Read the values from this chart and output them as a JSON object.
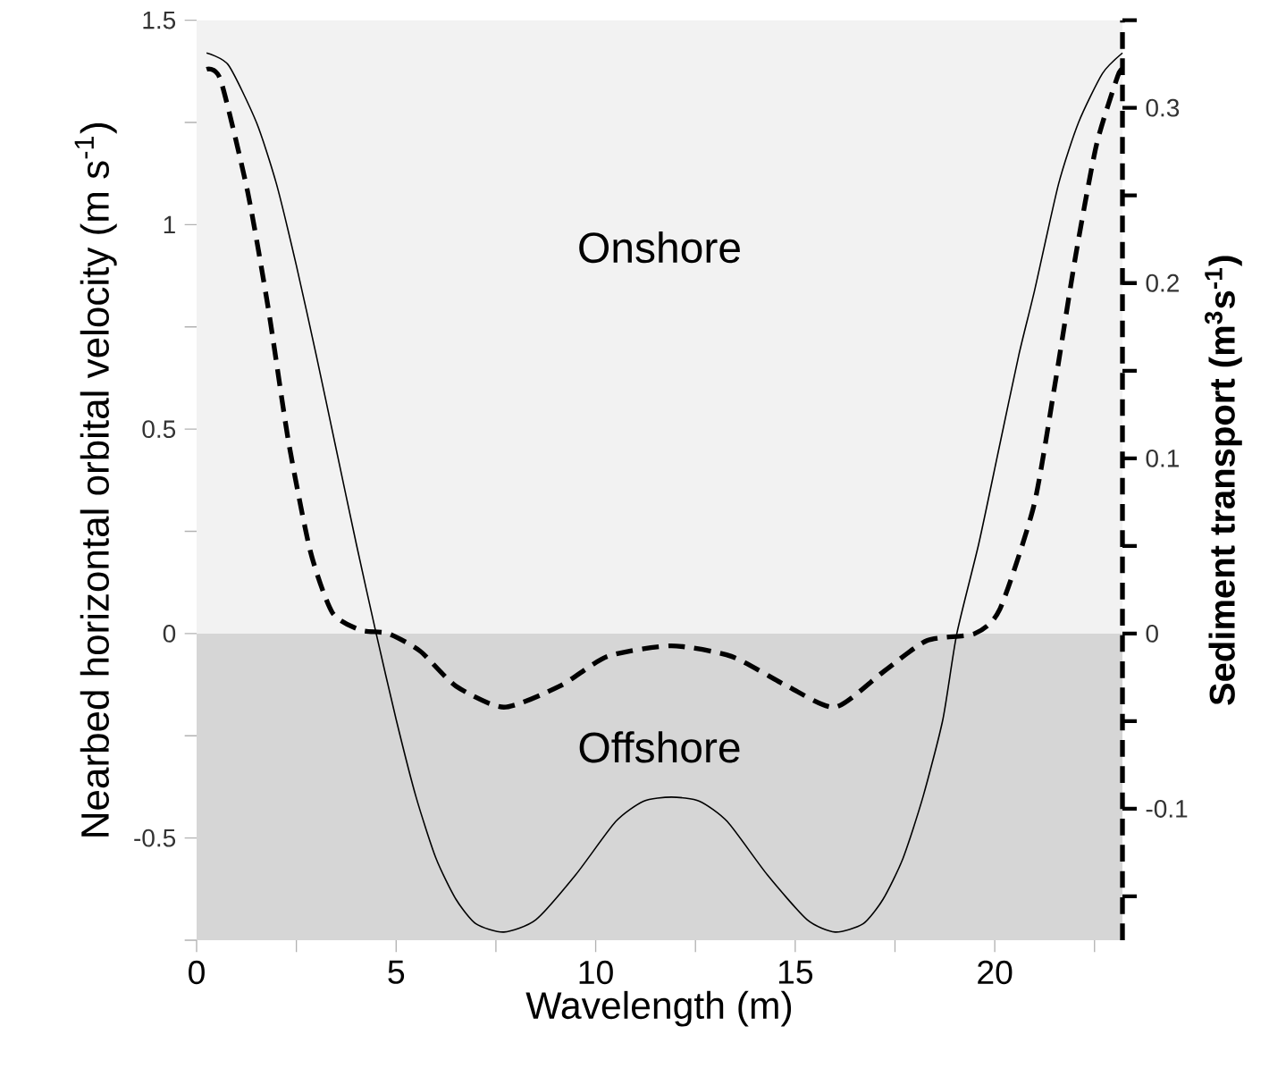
{
  "chart_data": {
    "type": "line",
    "xlabel": "Wavelength (m)",
    "ylabel": "Nearbed horizontal orbital velocity (m s$^{-1}$)",
    "y2label": "Sediment transport (m$^{3}$s$^{-1}$)",
    "xlim": [
      0,
      23.2
    ],
    "xticks": [
      0,
      {
        "value": 2.5,
        "label": null
      },
      5,
      {
        "value": 7.5,
        "label": null
      },
      10,
      {
        "value": 12.5,
        "label": null
      },
      15,
      {
        "value": 17.5,
        "label": null
      },
      20,
      {
        "value": 22.5,
        "label": null
      }
    ],
    "ylim": [
      -0.75,
      1.5
    ],
    "yticks": [
      {
        "value": -0.75,
        "label": null
      },
      -0.5,
      {
        "value": -0.25,
        "label": null
      },
      0,
      {
        "value": 0.25,
        "label": null
      },
      0.5,
      {
        "value": 0.75,
        "label": null
      },
      1,
      {
        "value": 1.25,
        "label": null
      },
      1.5
    ],
    "y2lim": [
      -0.175,
      0.35
    ],
    "y2ticks": [
      {
        "value": -0.15,
        "label": null
      },
      -0.1,
      {
        "value": -0.05,
        "label": null
      },
      0,
      {
        "value": 0.05,
        "label": null
      },
      0.1,
      {
        "value": 0.15,
        "label": null
      },
      0.2,
      {
        "value": 0.25,
        "label": null
      },
      0.3,
      {
        "value": 0.35,
        "label": null
      }
    ],
    "bands": [
      {
        "axis": "y",
        "from": 0,
        "to": 1.5,
        "label": "Onshore",
        "color": "#f2f2f2"
      },
      {
        "axis": "y",
        "from": -0.75,
        "to": 0,
        "label": "Offshore",
        "color": "#d6d6d6"
      }
    ],
    "series": [
      {
        "color": "#000000",
        "line_style": "solid",
        "x": [
          0.25,
          0.8,
          1.5,
          2.0,
          2.5,
          3.0,
          3.5,
          4.0,
          4.5,
          5.0,
          5.5,
          6.0,
          6.5,
          7.0,
          7.7,
          8.5,
          9.5,
          10.5,
          11.2,
          11.9,
          12.6,
          13.3,
          14.3,
          15.3,
          16.0,
          16.7,
          17.2,
          17.7,
          18.2,
          18.7,
          19.05,
          19.6,
          20.1,
          20.6,
          21.0,
          21.6,
          22.1,
          22.7,
          23.2
        ],
        "values": [
          1.42,
          1.39,
          1.25,
          1.1,
          0.9,
          0.68,
          0.45,
          0.22,
          0.0,
          -0.21,
          -0.4,
          -0.55,
          -0.65,
          -0.71,
          -0.73,
          -0.7,
          -0.59,
          -0.46,
          -0.41,
          -0.4,
          -0.41,
          -0.46,
          -0.59,
          -0.7,
          -0.73,
          -0.71,
          -0.65,
          -0.55,
          -0.4,
          -0.21,
          0.0,
          0.22,
          0.45,
          0.68,
          0.84,
          1.1,
          1.25,
          1.37,
          1.42
        ]
      },
      {
        "color": "#000000",
        "line_style": "dashed",
        "axis": "y2",
        "x": [
          0.25,
          0.6,
          1.28,
          1.8,
          2.3,
          2.85,
          3.4,
          4.1,
          4.8,
          5.6,
          6.5,
          7.7,
          9.1,
          10.3,
          11.9,
          13.4,
          14.8,
          16.0,
          17.2,
          18.3,
          19.5,
          20.13,
          20.98,
          21.5,
          22.03,
          22.55,
          23.08,
          23.2
        ],
        "values": [
          0.322,
          0.316,
          0.252,
          0.185,
          0.11,
          0.047,
          0.012,
          0.002,
          0.0,
          -0.01,
          -0.03,
          -0.042,
          -0.03,
          -0.013,
          -0.007,
          -0.013,
          -0.03,
          -0.042,
          -0.022,
          -0.004,
          0.0,
          0.014,
          0.073,
          0.141,
          0.216,
          0.279,
          0.318,
          0.322
        ]
      }
    ]
  }
}
